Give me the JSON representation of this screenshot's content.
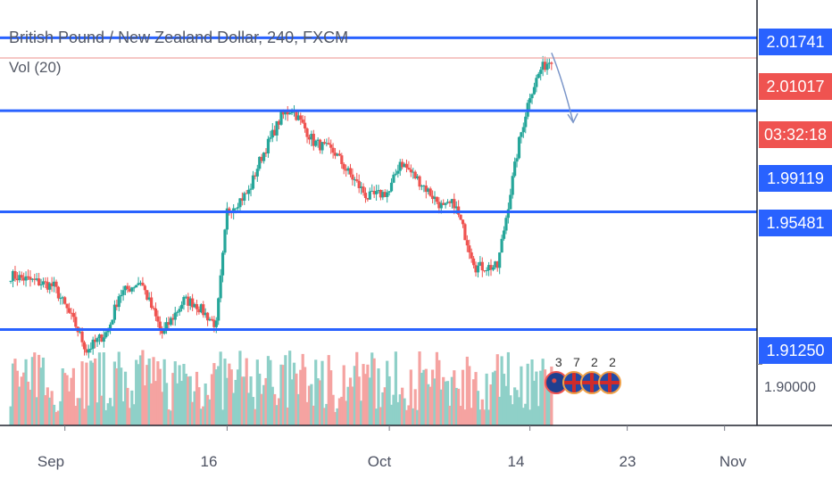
{
  "chart_data": {
    "type": "candlestick",
    "title": "British Pound / New Zealand Dollar, 240, FXCM",
    "indicator_label": "Vol (20)",
    "y_range": [
      1.878,
      2.031
    ],
    "x_range": [
      "2020-08-26",
      "2020-11-04"
    ],
    "y_ticks": [
      "1.90000"
    ],
    "x_ticks": [
      {
        "label": "Sep",
        "date": "2020-09-01"
      },
      {
        "label": "16",
        "date": "2020-09-16"
      },
      {
        "label": "Oct",
        "date": "2020-10-01"
      },
      {
        "label": "14",
        "date": "2020-10-14"
      },
      {
        "label": "23",
        "date": "2020-10-23"
      },
      {
        "label": "Nov",
        "date": "2020-11-01"
      }
    ],
    "horizontal_levels": [
      {
        "label": "2.01741",
        "price": 2.01741,
        "color": "#2962ff"
      },
      {
        "label": "1.99119",
        "price": 1.99119,
        "color": "#2962ff"
      },
      {
        "label": "1.95481",
        "price": 1.95481,
        "color": "#2962ff"
      },
      {
        "label": "1.91250",
        "price": 1.9125,
        "color": "#2962ff"
      }
    ],
    "last_price": {
      "label": "2.01017",
      "price": 2.01017,
      "countdown": "03:32:18",
      "color": "#ef5350"
    },
    "close_path": [
      {
        "date": "2020-08-27",
        "close": 1.932
      },
      {
        "date": "2020-08-29",
        "close": 1.93
      },
      {
        "date": "2020-08-31",
        "close": 1.928
      },
      {
        "date": "2020-09-02",
        "close": 1.914
      },
      {
        "date": "2020-09-03",
        "close": 1.905
      },
      {
        "date": "2020-09-05",
        "close": 1.912
      },
      {
        "date": "2020-09-06",
        "close": 1.925
      },
      {
        "date": "2020-09-08",
        "close": 1.93
      },
      {
        "date": "2020-09-10",
        "close": 1.911
      },
      {
        "date": "2020-09-12",
        "close": 1.923
      },
      {
        "date": "2020-09-13",
        "close": 1.922
      },
      {
        "date": "2020-09-15",
        "close": 1.914
      },
      {
        "date": "2020-09-16",
        "close": 1.955
      },
      {
        "date": "2020-09-18",
        "close": 1.962
      },
      {
        "date": "2020-09-19",
        "close": 1.973
      },
      {
        "date": "2020-09-21",
        "close": 1.989
      },
      {
        "date": "2020-09-22",
        "close": 1.992
      },
      {
        "date": "2020-09-24",
        "close": 1.98
      },
      {
        "date": "2020-09-26",
        "close": 1.976
      },
      {
        "date": "2020-09-27",
        "close": 1.97
      },
      {
        "date": "2020-09-29",
        "close": 1.96
      },
      {
        "date": "2020-10-01",
        "close": 1.962
      },
      {
        "date": "2020-10-02",
        "close": 1.973
      },
      {
        "date": "2020-10-04",
        "close": 1.965
      },
      {
        "date": "2020-10-06",
        "close": 1.956
      },
      {
        "date": "2020-10-07",
        "close": 1.958
      },
      {
        "date": "2020-10-09",
        "close": 1.935
      },
      {
        "date": "2020-10-11",
        "close": 1.935
      },
      {
        "date": "2020-10-13",
        "close": 1.98
      },
      {
        "date": "2020-10-14",
        "close": 1.997
      },
      {
        "date": "2020-10-15",
        "close": 2.006
      },
      {
        "date": "2020-10-16",
        "close": 2.01
      }
    ],
    "annotation_arrow": {
      "from": {
        "date": "2020-10-16",
        "price": 2.012
      },
      "to": {
        "date": "2020-10-18",
        "price": 1.987
      },
      "color": "#7b96c9"
    },
    "event_markers": [
      {
        "date": "2020-10-16",
        "flag": "nz-flag",
        "count": "3"
      },
      {
        "date": "2020-10-17",
        "flag": "uk-flag",
        "count": "7"
      },
      {
        "date": "2020-10-18",
        "flag": "uk-flag",
        "count": "2"
      },
      {
        "date": "2020-10-19",
        "flag": "uk-flag",
        "count": "2"
      }
    ],
    "colors": {
      "up": "#26a69a",
      "down": "#ef5350",
      "vol_up": "#8fd0c8",
      "vol_down": "#f5a3a1",
      "axis": "#787b86"
    },
    "grid": false
  }
}
